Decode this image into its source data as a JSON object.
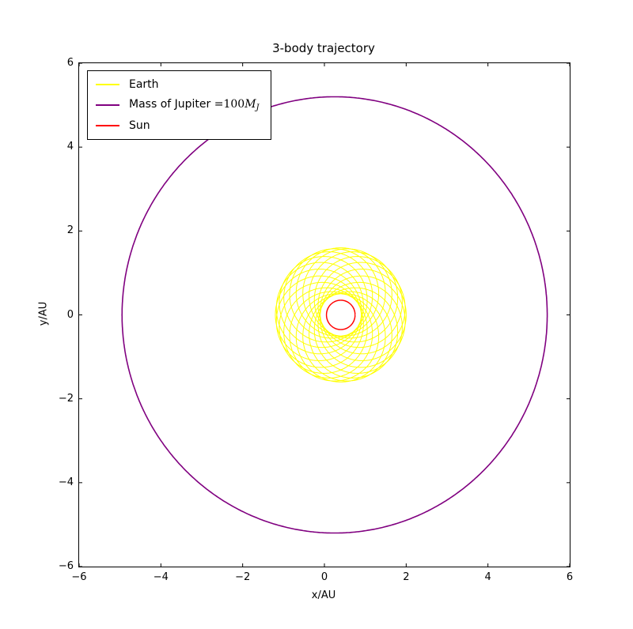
{
  "figure": {
    "title": "3-body trajectory",
    "xlabel": "x/AU",
    "ylabel": "y/AU",
    "background_color": "#ffffff"
  },
  "legend": {
    "position": "upper left",
    "items": [
      {
        "label": "Earth",
        "color": "#ffff00"
      },
      {
        "label_prefix": "Mass of Jupiter =",
        "math_num": "100",
        "math_base": "M",
        "math_sub": "J",
        "color": "#800080"
      },
      {
        "label": "Sun",
        "color": "#ff0000"
      }
    ]
  },
  "chart_data": {
    "type": "line",
    "title": "3-body trajectory",
    "xlabel": "x/AU",
    "ylabel": "y/AU",
    "xlim": [
      -6,
      6
    ],
    "ylim": [
      -6,
      6
    ],
    "xticks": [
      -6,
      -4,
      -2,
      0,
      2,
      4,
      6
    ],
    "yticks": [
      -6,
      -4,
      -2,
      0,
      2,
      4,
      6
    ],
    "xtick_labels": [
      "−6",
      "−4",
      "−2",
      "0",
      "2",
      "4",
      "6"
    ],
    "ytick_labels": [
      "−6",
      "−4",
      "−2",
      "0",
      "2",
      "4",
      "6"
    ],
    "grid": false,
    "legend_position": "upper left",
    "tick_direction": "in",
    "series": [
      {
        "id": "earth",
        "name": "Earth",
        "color": "#ffff00",
        "linewidth": 1.0,
        "curve": {
          "kind": "precessing-orbit",
          "cx": 0.4,
          "cy": 0.0,
          "r_orbit": 1.05,
          "r_precession": 0.55,
          "loops": 21,
          "r_inner": 0.5,
          "r_outer": 1.6
        }
      },
      {
        "id": "jupiter",
        "name": "Mass of Jupiter =100M_J",
        "color": "#800080",
        "linewidth": 1.6,
        "curve": {
          "kind": "circle",
          "cx": 0.25,
          "cy": 0.0,
          "r": 5.2
        }
      },
      {
        "id": "sun",
        "name": "Sun",
        "color": "#ff0000",
        "linewidth": 1.4,
        "curve": {
          "kind": "circle",
          "cx": 0.4,
          "cy": 0.0,
          "r": 0.35
        }
      }
    ]
  }
}
